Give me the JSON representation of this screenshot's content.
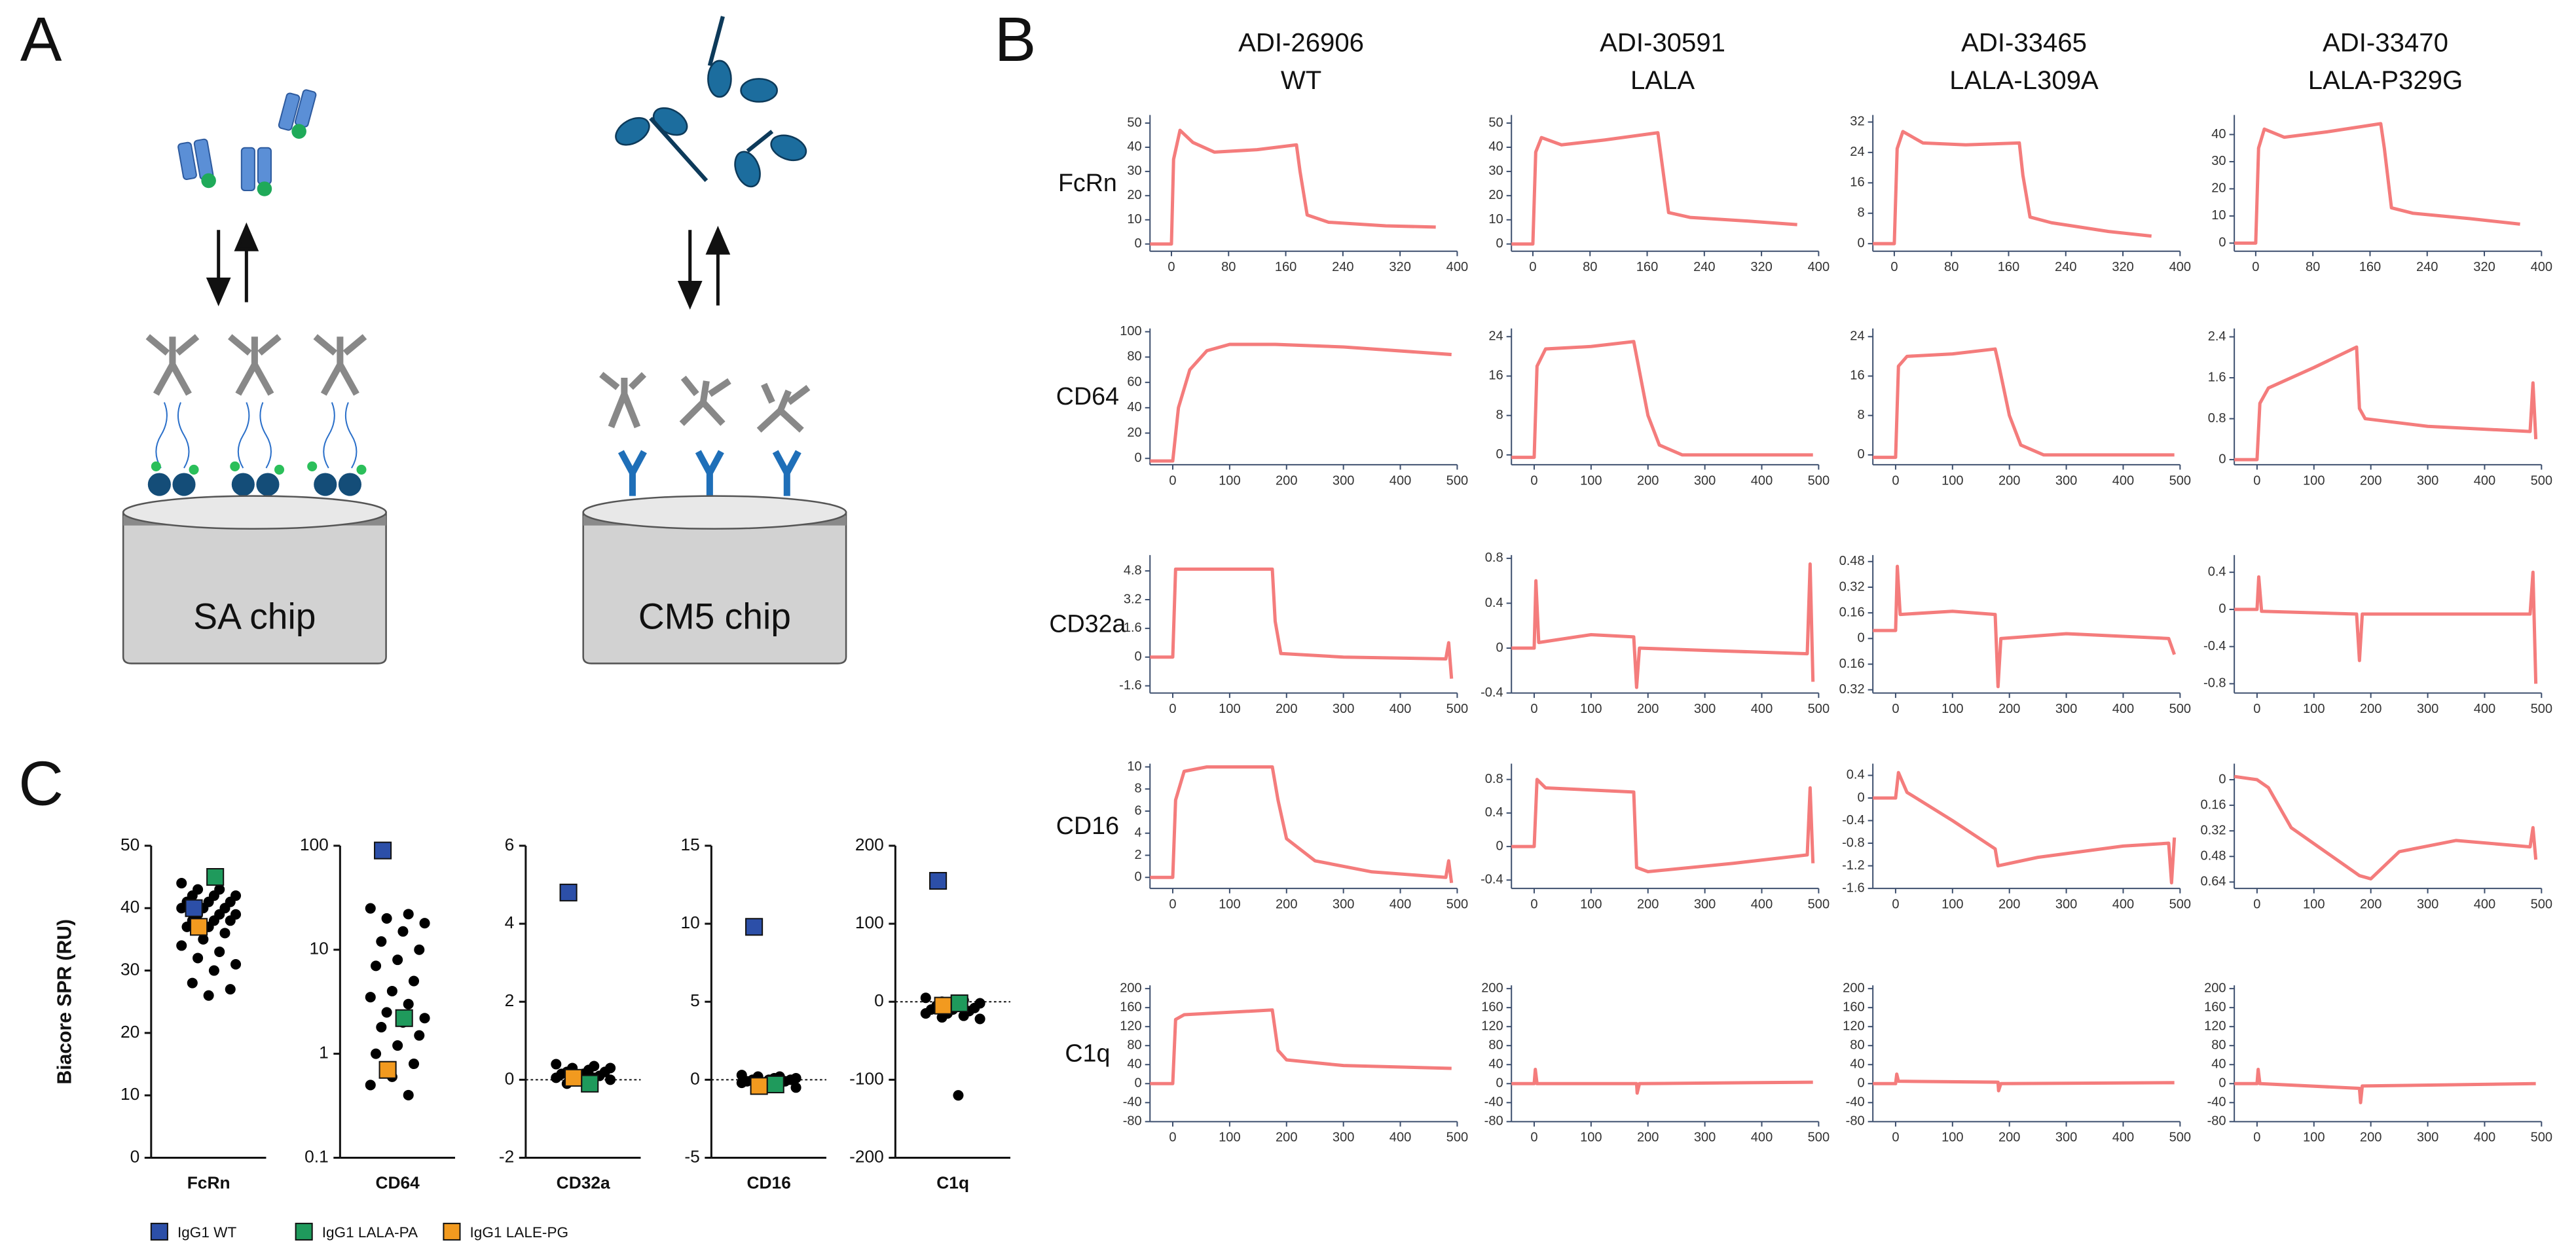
{
  "panel_labels": [
    "A",
    "B",
    "C"
  ],
  "diagram": {
    "left_chip": "SA chip",
    "right_chip": "CM5 chip"
  },
  "column_headers": [
    [
      "ADI-26906",
      "WT"
    ],
    [
      "ADI-30591",
      "LALA"
    ],
    [
      "ADI-33465",
      "LALA-L309A"
    ],
    [
      "ADI-33470",
      "LALA-P329G"
    ]
  ],
  "row_labels": [
    "FcRn",
    "CD64",
    "CD32a",
    "CD16",
    "C1q"
  ],
  "legend": [
    {
      "name": "IgG1 WT",
      "color": "#2c4fa8"
    },
    {
      "name": "IgG1 LALA-PA",
      "color": "#1f9a5c"
    },
    {
      "name": "IgG1 LALE-PG",
      "color": "#f29a1f"
    }
  ],
  "chart_data": [
    {
      "type": "line",
      "color": "#f47c7c",
      "xlim": [
        -30,
        400
      ],
      "xticks": [
        0,
        80,
        160,
        240,
        320,
        400
      ],
      "ylim": [
        -3,
        52
      ],
      "yticks": [
        0,
        10,
        20,
        30,
        40,
        50
      ],
      "x": [
        -30,
        0,
        3,
        12,
        30,
        60,
        120,
        175,
        180,
        190,
        220,
        300,
        370
      ],
      "values": [
        0,
        0,
        35,
        47,
        42,
        38,
        39,
        41,
        30,
        12,
        9,
        7.5,
        7
      ]
    },
    {
      "type": "line",
      "color": "#f47c7c",
      "xlim": [
        -30,
        400
      ],
      "xticks": [
        0,
        80,
        160,
        240,
        320,
        400
      ],
      "ylim": [
        -3,
        52
      ],
      "yticks": [
        0,
        10,
        20,
        30,
        40,
        50
      ],
      "x": [
        -30,
        0,
        4,
        12,
        40,
        100,
        175,
        180,
        190,
        220,
        300,
        370
      ],
      "values": [
        0,
        0,
        38,
        44,
        41,
        43,
        46,
        35,
        13,
        11,
        9.5,
        8
      ]
    },
    {
      "type": "line",
      "color": "#f47c7c",
      "xlim": [
        -30,
        400
      ],
      "xticks": [
        0,
        80,
        160,
        240,
        320,
        400
      ],
      "ylim": [
        -2,
        33
      ],
      "yticks": [
        0,
        8,
        16,
        24,
        32
      ],
      "x": [
        -30,
        0,
        4,
        12,
        40,
        100,
        175,
        180,
        190,
        220,
        300,
        360
      ],
      "values": [
        0,
        0,
        25,
        29.5,
        26.5,
        26,
        26.5,
        18,
        7,
        5.5,
        3.2,
        2
      ]
    },
    {
      "type": "line",
      "color": "#f47c7c",
      "xlim": [
        -30,
        400
      ],
      "xticks": [
        0,
        80,
        160,
        240,
        320,
        400
      ],
      "ylim": [
        -3,
        46
      ],
      "yticks": [
        0,
        10,
        20,
        30,
        40
      ],
      "x": [
        -30,
        0,
        4,
        12,
        40,
        100,
        175,
        180,
        190,
        220,
        300,
        370
      ],
      "values": [
        0,
        0,
        35,
        42,
        39,
        41,
        44,
        35,
        13,
        11,
        9,
        7
      ]
    },
    {
      "type": "line",
      "color": "#f47c7c",
      "xlim": [
        -40,
        500
      ],
      "xticks": [
        0,
        100,
        200,
        300,
        400,
        500
      ],
      "ylim": [
        -5,
        100
      ],
      "yticks": [
        0,
        20,
        40,
        60,
        80,
        100
      ],
      "x": [
        -40,
        0,
        10,
        30,
        60,
        100,
        180,
        300,
        490
      ],
      "values": [
        -2,
        -2,
        40,
        70,
        85,
        90,
        90,
        88,
        82
      ]
    },
    {
      "type": "line",
      "color": "#f47c7c",
      "xlim": [
        -40,
        500
      ],
      "xticks": [
        0,
        100,
        200,
        300,
        400,
        500
      ],
      "ylim": [
        -2,
        25
      ],
      "yticks": [
        0,
        8,
        16,
        24
      ],
      "x": [
        -40,
        0,
        5,
        20,
        100,
        175,
        180,
        200,
        220,
        260,
        490
      ],
      "values": [
        -0.5,
        -0.5,
        18,
        21.5,
        22,
        23,
        20,
        8,
        2,
        0,
        0
      ]
    },
    {
      "type": "line",
      "color": "#f47c7c",
      "xlim": [
        -40,
        500
      ],
      "xticks": [
        0,
        100,
        200,
        300,
        400,
        500
      ],
      "ylim": [
        -2,
        25
      ],
      "yticks": [
        0,
        8,
        16,
        24
      ],
      "x": [
        -40,
        0,
        5,
        20,
        100,
        175,
        180,
        200,
        220,
        260,
        490
      ],
      "values": [
        -0.5,
        -0.5,
        18,
        20,
        20.5,
        21.5,
        19,
        8,
        2,
        0,
        0
      ]
    },
    {
      "type": "line",
      "color": "#f47c7c",
      "xlim": [
        -40,
        500
      ],
      "xticks": [
        0,
        100,
        200,
        300,
        400,
        500
      ],
      "ylim": [
        -0.1,
        2.5
      ],
      "yticks": [
        0,
        0.8,
        1.6,
        2.4
      ],
      "x": [
        -40,
        0,
        5,
        20,
        100,
        175,
        180,
        190,
        300,
        480,
        485,
        490
      ],
      "values": [
        0,
        0,
        1.1,
        1.4,
        1.8,
        2.2,
        1.0,
        0.8,
        0.65,
        0.55,
        1.5,
        0.4
      ]
    },
    {
      "type": "line",
      "color": "#f47c7c",
      "xlim": [
        -40,
        500
      ],
      "xticks": [
        0,
        100,
        200,
        300,
        400,
        500
      ],
      "ylim": [
        -2,
        5.5
      ],
      "yticks": [
        -1.6,
        0,
        1.6,
        3.2,
        4.8
      ],
      "x": [
        -40,
        0,
        5,
        100,
        175,
        180,
        190,
        300,
        480,
        485,
        490
      ],
      "values": [
        0,
        0,
        4.9,
        4.9,
        4.9,
        2,
        0.2,
        0,
        -0.1,
        0.8,
        -1.2
      ]
    },
    {
      "type": "line",
      "color": "#f47c7c",
      "xlim": [
        -40,
        500
      ],
      "xticks": [
        0,
        100,
        200,
        300,
        400,
        500
      ],
      "ylim": [
        -0.4,
        0.8
      ],
      "yticks": [
        -0.4,
        0,
        0.4,
        0.8
      ],
      "x": [
        -40,
        0,
        3,
        8,
        100,
        175,
        180,
        185,
        300,
        480,
        485,
        490
      ],
      "values": [
        0,
        0,
        0.6,
        0.05,
        0.12,
        0.1,
        -0.35,
        0,
        -0.02,
        -0.05,
        0.75,
        -0.3
      ]
    },
    {
      "type": "line",
      "color": "#f47c7c",
      "xlim": [
        -40,
        500
      ],
      "xticks": [
        0,
        100,
        200,
        300,
        400,
        500
      ],
      "ylim": [
        -0.34,
        0.5
      ],
      "yticks": [
        {
          "value": -0.32,
          "label": "0.32"
        },
        {
          "value": -0.16,
          "label": "0.16"
        },
        0,
        0.16,
        0.32,
        0.48
      ],
      "x": [
        -40,
        0,
        3,
        8,
        100,
        175,
        180,
        185,
        300,
        480,
        490
      ],
      "values": [
        0.05,
        0.05,
        0.45,
        0.15,
        0.17,
        0.15,
        -0.3,
        0,
        0.03,
        0,
        -0.1
      ]
    },
    {
      "type": "line",
      "color": "#f47c7c",
      "xlim": [
        -40,
        500
      ],
      "xticks": [
        0,
        100,
        200,
        300,
        400,
        500
      ],
      "ylim": [
        -0.9,
        0.55
      ],
      "yticks": [
        -0.8,
        -0.4,
        0,
        0.4
      ],
      "x": [
        -40,
        0,
        3,
        8,
        175,
        180,
        185,
        480,
        485,
        490
      ],
      "values": [
        0,
        0,
        0.35,
        -0.02,
        -0.05,
        -0.55,
        -0.05,
        -0.05,
        0.4,
        -0.8
      ]
    },
    {
      "type": "line",
      "color": "#f47c7c",
      "xlim": [
        -40,
        500
      ],
      "xticks": [
        0,
        100,
        200,
        300,
        400,
        500
      ],
      "ylim": [
        -1,
        10
      ],
      "yticks": [
        0,
        2,
        4,
        6,
        8,
        10
      ],
      "x": [
        -40,
        0,
        5,
        20,
        60,
        175,
        185,
        200,
        250,
        350,
        480,
        485,
        490
      ],
      "values": [
        0,
        0,
        7,
        9.6,
        10,
        10,
        7,
        3.5,
        1.5,
        0.5,
        0,
        1.5,
        -0.5
      ]
    },
    {
      "type": "line",
      "color": "#f47c7c",
      "xlim": [
        -40,
        500
      ],
      "xticks": [
        0,
        100,
        200,
        300,
        400,
        500
      ],
      "ylim": [
        -0.5,
        0.95
      ],
      "yticks": [
        -0.4,
        0,
        0.4,
        0.8
      ],
      "x": [
        -40,
        0,
        5,
        20,
        175,
        180,
        200,
        350,
        480,
        485,
        490
      ],
      "values": [
        0,
        0,
        0.8,
        0.7,
        0.65,
        -0.25,
        -0.3,
        -0.2,
        -0.1,
        0.7,
        -0.2
      ]
    },
    {
      "type": "line",
      "color": "#f47c7c",
      "xlim": [
        -40,
        500
      ],
      "xticks": [
        0,
        100,
        200,
        300,
        400,
        500
      ],
      "ylim": [
        -1.6,
        0.55
      ],
      "yticks": [
        -1.6,
        -1.2,
        -0.8,
        -0.4,
        0,
        0.4
      ],
      "x": [
        -40,
        0,
        5,
        20,
        100,
        175,
        180,
        250,
        400,
        480,
        485,
        490
      ],
      "values": [
        0,
        0,
        0.45,
        0.1,
        -0.4,
        -0.9,
        -1.2,
        -1.05,
        -0.85,
        -0.8,
        -1.5,
        -0.7
      ]
    },
    {
      "type": "line",
      "color": "#f47c7c",
      "xlim": [
        -40,
        500
      ],
      "xticks": [
        0,
        100,
        200,
        300,
        400,
        500
      ],
      "ylim": [
        -0.68,
        0.08
      ],
      "yticks": [
        0,
        {
          "value": -0.16,
          "label": "0.16"
        },
        {
          "value": -0.32,
          "label": "0.32"
        },
        {
          "value": -0.48,
          "label": "0.48"
        },
        {
          "value": -0.64,
          "label": "0.64"
        }
      ],
      "x": [
        -40,
        0,
        20,
        60,
        120,
        180,
        200,
        250,
        350,
        480,
        485,
        490
      ],
      "values": [
        0.02,
        0,
        -0.05,
        -0.3,
        -0.45,
        -0.6,
        -0.62,
        -0.45,
        -0.38,
        -0.42,
        -0.3,
        -0.5
      ]
    },
    {
      "type": "line",
      "color": "#f47c7c",
      "xlim": [
        -40,
        500
      ],
      "xticks": [
        0,
        100,
        200,
        300,
        400,
        500
      ],
      "ylim": [
        -80,
        200
      ],
      "yticks": [
        -80,
        -40,
        0,
        40,
        80,
        120,
        160,
        200
      ],
      "x": [
        -40,
        0,
        5,
        20,
        175,
        185,
        200,
        300,
        490
      ],
      "values": [
        0,
        0,
        135,
        145,
        155,
        70,
        50,
        38,
        32
      ]
    },
    {
      "type": "line",
      "color": "#f47c7c",
      "xlim": [
        -40,
        500
      ],
      "xticks": [
        0,
        100,
        200,
        300,
        400,
        500
      ],
      "ylim": [
        -80,
        200
      ],
      "yticks": [
        -80,
        -40,
        0,
        40,
        80,
        120,
        160,
        200
      ],
      "x": [
        -40,
        0,
        2,
        5,
        180,
        181,
        185,
        490
      ],
      "values": [
        0,
        0,
        30,
        0,
        0,
        -20,
        0,
        3
      ]
    },
    {
      "type": "line",
      "color": "#f47c7c",
      "xlim": [
        -40,
        500
      ],
      "xticks": [
        0,
        100,
        200,
        300,
        400,
        500
      ],
      "ylim": [
        -80,
        200
      ],
      "yticks": [
        -80,
        -40,
        0,
        40,
        80,
        120,
        160,
        200
      ],
      "x": [
        -40,
        0,
        2,
        5,
        180,
        181,
        185,
        490
      ],
      "values": [
        0,
        0,
        20,
        5,
        3,
        -15,
        0,
        2
      ]
    },
    {
      "type": "line",
      "color": "#f47c7c",
      "xlim": [
        -40,
        500
      ],
      "xticks": [
        0,
        100,
        200,
        300,
        400,
        500
      ],
      "ylim": [
        -80,
        200
      ],
      "yticks": [
        -80,
        -40,
        0,
        40,
        80,
        120,
        160,
        200
      ],
      "x": [
        -40,
        0,
        2,
        5,
        180,
        182,
        185,
        490
      ],
      "values": [
        0,
        0,
        30,
        0,
        -10,
        -40,
        -5,
        0
      ]
    },
    {
      "type": "scatter",
      "category": "FcRn",
      "ylabel": "Biacore SPR (RU)",
      "ylim": [
        0,
        50
      ],
      "yticks": [
        0,
        10,
        20,
        30,
        40,
        50
      ],
      "values": [
        44,
        43,
        43,
        42,
        42,
        42,
        41,
        41,
        41,
        40,
        40,
        40,
        39,
        39,
        39,
        38,
        38,
        38,
        37,
        37,
        36,
        35,
        34,
        33,
        32,
        31,
        30,
        28,
        27,
        26
      ],
      "highlights": [
        40,
        45,
        37
      ]
    },
    {
      "type": "scatter",
      "category": "CD64",
      "log": true,
      "ylim": [
        0.1,
        100
      ],
      "yticks": [
        0.1,
        1,
        10,
        100
      ],
      "values": [
        25,
        22,
        20,
        18,
        15,
        12,
        10,
        8,
        7,
        5,
        4,
        3.5,
        3,
        2.5,
        2.2,
        2,
        1.8,
        1.5,
        1.2,
        1,
        0.8,
        0.6,
        0.5,
        0.4
      ],
      "highlights": [
        90,
        2.2,
        0.7
      ]
    },
    {
      "type": "scatter",
      "category": "CD32a",
      "zero_line": true,
      "ylim": [
        -2,
        6
      ],
      "yticks": [
        -2,
        0,
        2,
        4,
        6
      ],
      "values": [
        0.4,
        0.35,
        0.3,
        0.3,
        0.25,
        0.2,
        0.2,
        0.15,
        0.15,
        0.1,
        0.1,
        0.05,
        0.05,
        0,
        0,
        -0.05,
        -0.1
      ],
      "highlights": [
        4.8,
        -0.1,
        0.05
      ]
    },
    {
      "type": "scatter",
      "category": "CD16",
      "zero_line": true,
      "ylim": [
        -5,
        15
      ],
      "yticks": [
        -5,
        0,
        5,
        10,
        15
      ],
      "values": [
        0.3,
        0.2,
        0.2,
        0.1,
        0.1,
        0,
        0,
        0,
        -0.1,
        -0.1,
        -0.2,
        -0.2,
        -0.3,
        -0.4,
        -0.5
      ],
      "highlights": [
        9.8,
        -0.3,
        -0.4
      ]
    },
    {
      "type": "scatter",
      "category": "C1q",
      "zero_line": true,
      "ylim": [
        -200,
        200
      ],
      "yticks": [
        -200,
        -100,
        0,
        100,
        200
      ],
      "values": [
        5,
        2,
        0,
        -2,
        -5,
        -5,
        -8,
        -10,
        -10,
        -12,
        -15,
        -15,
        -18,
        -20,
        -22,
        -120
      ],
      "highlights": [
        155,
        -2,
        -5
      ]
    }
  ]
}
